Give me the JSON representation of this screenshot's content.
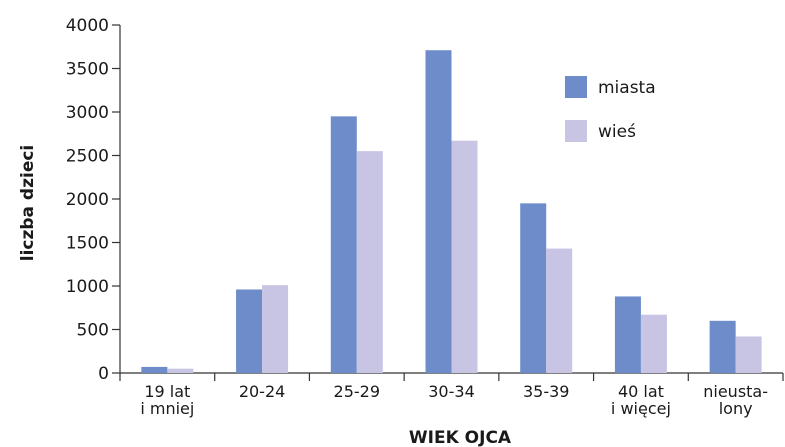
{
  "chart_data": {
    "type": "bar",
    "ylabel": "liczba dzieci",
    "xlabel": "WIEK OJCA",
    "ylim": [
      0,
      4000
    ],
    "yticks": [
      0,
      500,
      1000,
      1500,
      2000,
      2500,
      3000,
      3500,
      4000
    ],
    "categories": [
      [
        "19 lat",
        "i mniej"
      ],
      [
        "20-24"
      ],
      [
        "25-29"
      ],
      [
        "30-34"
      ],
      [
        "35-39"
      ],
      [
        "40 lat",
        "i więcej"
      ],
      [
        "nieusta-",
        "lony"
      ]
    ],
    "series": [
      {
        "name": "miasta",
        "color": "#6d8cc9",
        "values": [
          70,
          960,
          2950,
          3710,
          1950,
          880,
          600
        ]
      },
      {
        "name": "wieś",
        "color": "#c8c4e3",
        "values": [
          50,
          1010,
          2550,
          2670,
          1430,
          670,
          420
        ]
      }
    ],
    "legend_position": "top-right",
    "grid": false
  }
}
